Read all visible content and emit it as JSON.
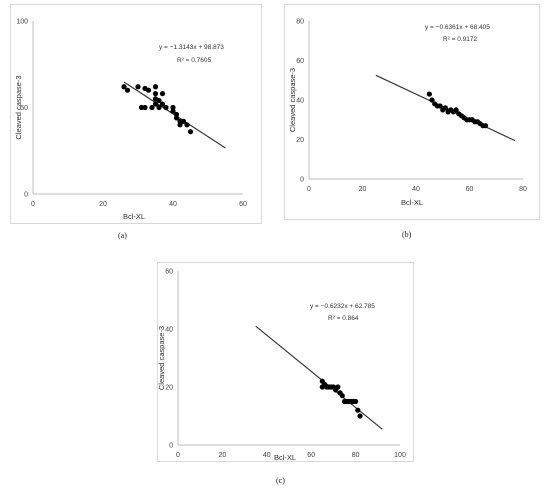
{
  "chart_data": [
    {
      "type": "scatter",
      "caption": "(a)",
      "xlabel": "Bcl-XL",
      "ylabel": "Cleaved caspase-3",
      "xlim": [
        0,
        60
      ],
      "ylim": [
        0,
        100
      ],
      "xticks": [
        0,
        20,
        40,
        60
      ],
      "yticks": [
        0,
        50,
        100
      ],
      "equation": "y = −1.3143x + 98.873",
      "r2_label": "R² = 0.7605",
      "trendline": {
        "slope": -1.3143,
        "intercept": 98.873,
        "x_range": [
          26,
          55
        ]
      },
      "points": [
        [
          26,
          62
        ],
        [
          27,
          60
        ],
        [
          30,
          62
        ],
        [
          31,
          50
        ],
        [
          32,
          50
        ],
        [
          32,
          61
        ],
        [
          33,
          60
        ],
        [
          34,
          50
        ],
        [
          35,
          62
        ],
        [
          35,
          58
        ],
        [
          35,
          55
        ],
        [
          35,
          52
        ],
        [
          36,
          54
        ],
        [
          36,
          50
        ],
        [
          37,
          58
        ],
        [
          37,
          52
        ],
        [
          38,
          50
        ],
        [
          40,
          50
        ],
        [
          40,
          48
        ],
        [
          41,
          44
        ],
        [
          41,
          46
        ],
        [
          42,
          42
        ],
        [
          42,
          40
        ],
        [
          43,
          42
        ],
        [
          44,
          40
        ],
        [
          45,
          36
        ]
      ],
      "colors": {
        "points": "#000000",
        "line": "#3a3a3a",
        "axis": "#bfbfbf"
      }
    },
    {
      "type": "scatter",
      "caption": "(b)",
      "xlabel": "Bcl-XL",
      "ylabel": "Cleaved caspase-3",
      "xlim": [
        0,
        80
      ],
      "ylim": [
        0,
        80
      ],
      "xticks": [
        0,
        20,
        40,
        60,
        80
      ],
      "yticks": [
        0,
        20,
        40,
        60,
        80
      ],
      "equation": "y = −0.6361x + 68.405",
      "r2_label": "R² = 0.9172",
      "trendline": {
        "slope": -0.6361,
        "intercept": 68.405,
        "x_range": [
          25,
          77
        ]
      },
      "points": [
        [
          45,
          43
        ],
        [
          46,
          40
        ],
        [
          47,
          38
        ],
        [
          48,
          37
        ],
        [
          49,
          37
        ],
        [
          50,
          35
        ],
        [
          51,
          36
        ],
        [
          52,
          34
        ],
        [
          53,
          35
        ],
        [
          54,
          34
        ],
        [
          55,
          35
        ],
        [
          56,
          33
        ],
        [
          57,
          32
        ],
        [
          58,
          31
        ],
        [
          59,
          30
        ],
        [
          60,
          30
        ],
        [
          61,
          30
        ],
        [
          62,
          29
        ],
        [
          63,
          29
        ],
        [
          64,
          28
        ],
        [
          65,
          27
        ],
        [
          66,
          27
        ]
      ],
      "colors": {
        "points": "#000000",
        "line": "#3a3a3a",
        "axis": "#bfbfbf"
      }
    },
    {
      "type": "scatter",
      "caption": "(c)",
      "xlabel": "Bcl-XL",
      "ylabel": "Cleaved caspase-3",
      "xlim": [
        0,
        100
      ],
      "ylim": [
        0,
        60
      ],
      "xticks": [
        0,
        20,
        40,
        60,
        80,
        100
      ],
      "yticks": [
        0,
        20,
        40,
        60
      ],
      "equation": "y = −0.6232x + 62.785",
      "r2_label": "R² = 0.864",
      "trendline": {
        "slope": -0.6232,
        "intercept": 62.785,
        "x_range": [
          35,
          92
        ]
      },
      "points": [
        [
          65,
          22
        ],
        [
          65,
          20
        ],
        [
          66,
          21
        ],
        [
          67,
          20
        ],
        [
          68,
          20
        ],
        [
          69,
          20
        ],
        [
          70,
          20
        ],
        [
          71,
          19
        ],
        [
          72,
          20
        ],
        [
          73,
          18
        ],
        [
          74,
          17
        ],
        [
          75,
          15
        ],
        [
          76,
          15
        ],
        [
          77,
          15
        ],
        [
          78,
          15
        ],
        [
          79,
          15
        ],
        [
          80,
          15
        ],
        [
          81,
          12
        ],
        [
          82,
          10
        ]
      ],
      "colors": {
        "points": "#000000",
        "line": "#3a3a3a",
        "axis": "#bfbfbf"
      }
    }
  ]
}
